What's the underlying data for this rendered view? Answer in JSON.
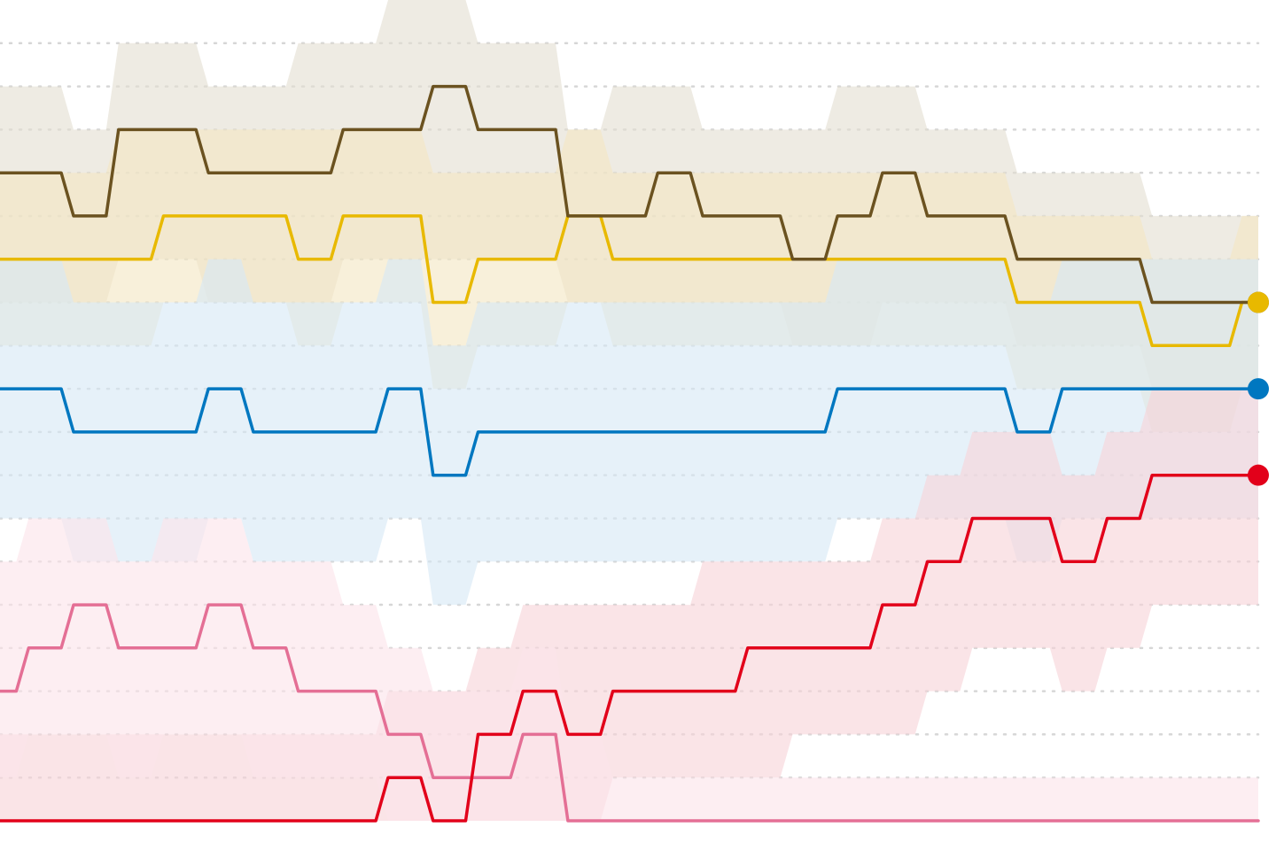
{
  "chart_data": {
    "type": "line",
    "x": [
      0,
      1,
      2,
      3,
      4,
      5,
      6,
      7,
      8,
      9,
      10,
      11,
      12,
      13,
      14,
      15,
      16,
      17,
      18,
      19,
      20,
      21,
      22,
      23,
      24,
      25,
      26,
      27,
      28
    ],
    "ylim": [
      0,
      19
    ],
    "gridlines": [
      1,
      2,
      3,
      4,
      5,
      6,
      7,
      8,
      9,
      10,
      11,
      12,
      13,
      14,
      15,
      16,
      17,
      18
    ],
    "grid": true,
    "series": [
      {
        "color": "#6b5220",
        "band_color": "#e3ded2",
        "values": [
          15,
          15,
          14,
          16,
          16,
          15,
          15,
          15,
          16,
          16,
          17,
          16,
          16,
          14,
          14,
          15,
          14,
          14,
          13,
          14,
          15,
          14,
          14,
          13,
          13,
          13,
          12,
          12,
          12
        ],
        "band_lower": [
          12,
          12,
          12,
          13,
          13,
          12,
          12,
          12,
          13,
          13,
          13,
          13,
          13,
          12,
          12,
          12,
          12,
          12,
          11,
          11,
          12,
          12,
          12,
          11,
          11,
          11,
          10,
          10,
          10
        ],
        "band_upper": [
          17,
          17,
          16,
          18,
          18,
          17,
          17,
          18,
          18,
          19,
          19,
          18,
          18,
          16,
          17,
          17,
          16,
          16,
          16,
          17,
          17,
          16,
          16,
          15,
          15,
          15,
          14,
          14,
          14
        ]
      },
      {
        "color": "#e8b900",
        "band_color": "#f3e7c3",
        "values": [
          13,
          13,
          13,
          13,
          14,
          14,
          14,
          13,
          14,
          14,
          12,
          13,
          13,
          14,
          13,
          13,
          13,
          13,
          13,
          13,
          13,
          13,
          13,
          12,
          12,
          12,
          11,
          11,
          12
        ],
        "band_lower": [
          11,
          11,
          11,
          11,
          12,
          12,
          12,
          11,
          12,
          12,
          10,
          11,
          11,
          12,
          11,
          11,
          11,
          11,
          11,
          11,
          11,
          11,
          11,
          10,
          10,
          10,
          9,
          9,
          10
        ],
        "band_upper": [
          15,
          15,
          15,
          16,
          16,
          16,
          16,
          16,
          16,
          16,
          15,
          15,
          15,
          16,
          15,
          15,
          15,
          15,
          15,
          15,
          15,
          15,
          15,
          14,
          14,
          14,
          13,
          13,
          14
        ]
      },
      {
        "color": "#0077c0",
        "band_color": "#d6e9f6",
        "values": [
          10,
          10,
          9,
          9,
          9,
          10,
          9,
          9,
          9,
          10,
          8,
          9,
          9,
          9,
          9,
          9,
          9,
          9,
          9,
          10,
          10,
          10,
          10,
          9,
          10,
          10,
          10,
          10,
          10
        ],
        "band_lower": [
          7,
          7,
          6,
          6,
          6,
          7,
          6,
          6,
          6,
          7,
          5,
          6,
          6,
          6,
          6,
          6,
          6,
          6,
          6,
          7,
          7,
          7,
          7,
          6,
          7,
          7,
          7,
          7,
          7
        ],
        "band_upper": [
          13,
          13,
          12,
          12,
          12,
          13,
          12,
          12,
          12,
          13,
          11,
          12,
          12,
          12,
          12,
          12,
          12,
          12,
          12,
          13,
          13,
          13,
          13,
          12,
          13,
          13,
          13,
          13,
          13
        ]
      },
      {
        "color": "#e2001a",
        "band_color": "#f7d3d8",
        "values": [
          0,
          0,
          0,
          0,
          0,
          0,
          0,
          0,
          0,
          1,
          0,
          2,
          3,
          2,
          3,
          3,
          3,
          4,
          4,
          4,
          5,
          6,
          7,
          7,
          6,
          7,
          8,
          8,
          8
        ],
        "band_lower": [
          0,
          0,
          0,
          0,
          0,
          0,
          0,
          0,
          0,
          0,
          0,
          0,
          0,
          0,
          1,
          1,
          1,
          1,
          2,
          2,
          2,
          3,
          4,
          4,
          3,
          4,
          5,
          5,
          5
        ],
        "band_upper": [
          2,
          2,
          2,
          2,
          2,
          2,
          2,
          2,
          2,
          3,
          3,
          4,
          5,
          5,
          5,
          5,
          6,
          6,
          6,
          6,
          7,
          8,
          9,
          9,
          8,
          9,
          10,
          10,
          10
        ]
      },
      {
        "color": "#e46f95",
        "band_color": "#fbe3ea",
        "values": [
          3,
          4,
          5,
          4,
          4,
          5,
          4,
          3,
          3,
          2,
          1,
          1,
          2,
          0,
          0,
          0,
          0,
          0,
          0,
          0,
          0,
          0,
          0,
          0,
          0,
          0,
          0,
          0,
          0
        ],
        "band_lower": [
          1,
          2,
          2,
          1,
          2,
          2,
          1,
          1,
          1,
          0,
          0,
          0,
          0,
          0,
          0,
          0,
          0,
          0,
          0,
          0,
          0,
          0,
          0,
          0,
          0,
          0,
          0,
          0,
          0
        ],
        "band_upper": [
          6,
          7,
          7,
          6,
          7,
          7,
          6,
          6,
          5,
          4,
          3,
          3,
          4,
          2,
          1,
          1,
          1,
          1,
          1,
          1,
          1,
          1,
          1,
          1,
          1,
          1,
          1,
          1,
          1
        ]
      }
    ]
  }
}
